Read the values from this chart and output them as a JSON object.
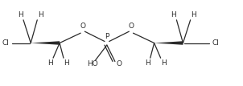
{
  "bg_color": "#ffffff",
  "line_color": "#2a2a2a",
  "text_color": "#2a2a2a",
  "font_size": 6.5,
  "line_width": 0.9,
  "figsize": [
    3.02,
    1.07
  ],
  "dpi": 100,
  "xlim": [
    0,
    10.5
  ],
  "ylim": [
    0,
    3.7
  ],
  "y_mid": 1.85,
  "y_O": 2.35,
  "y_H_top": 2.85,
  "y_H_bot": 1.2,
  "x_Cl_L": 0.3,
  "x_C1": 1.3,
  "x_C2": 2.55,
  "x_OL": 3.55,
  "x_P": 4.6,
  "x_OR": 5.65,
  "x_C3": 6.65,
  "x_C4": 7.9,
  "x_Cl_R": 9.1,
  "y_PO_end": 1.05,
  "y_POH_end": 1.1
}
